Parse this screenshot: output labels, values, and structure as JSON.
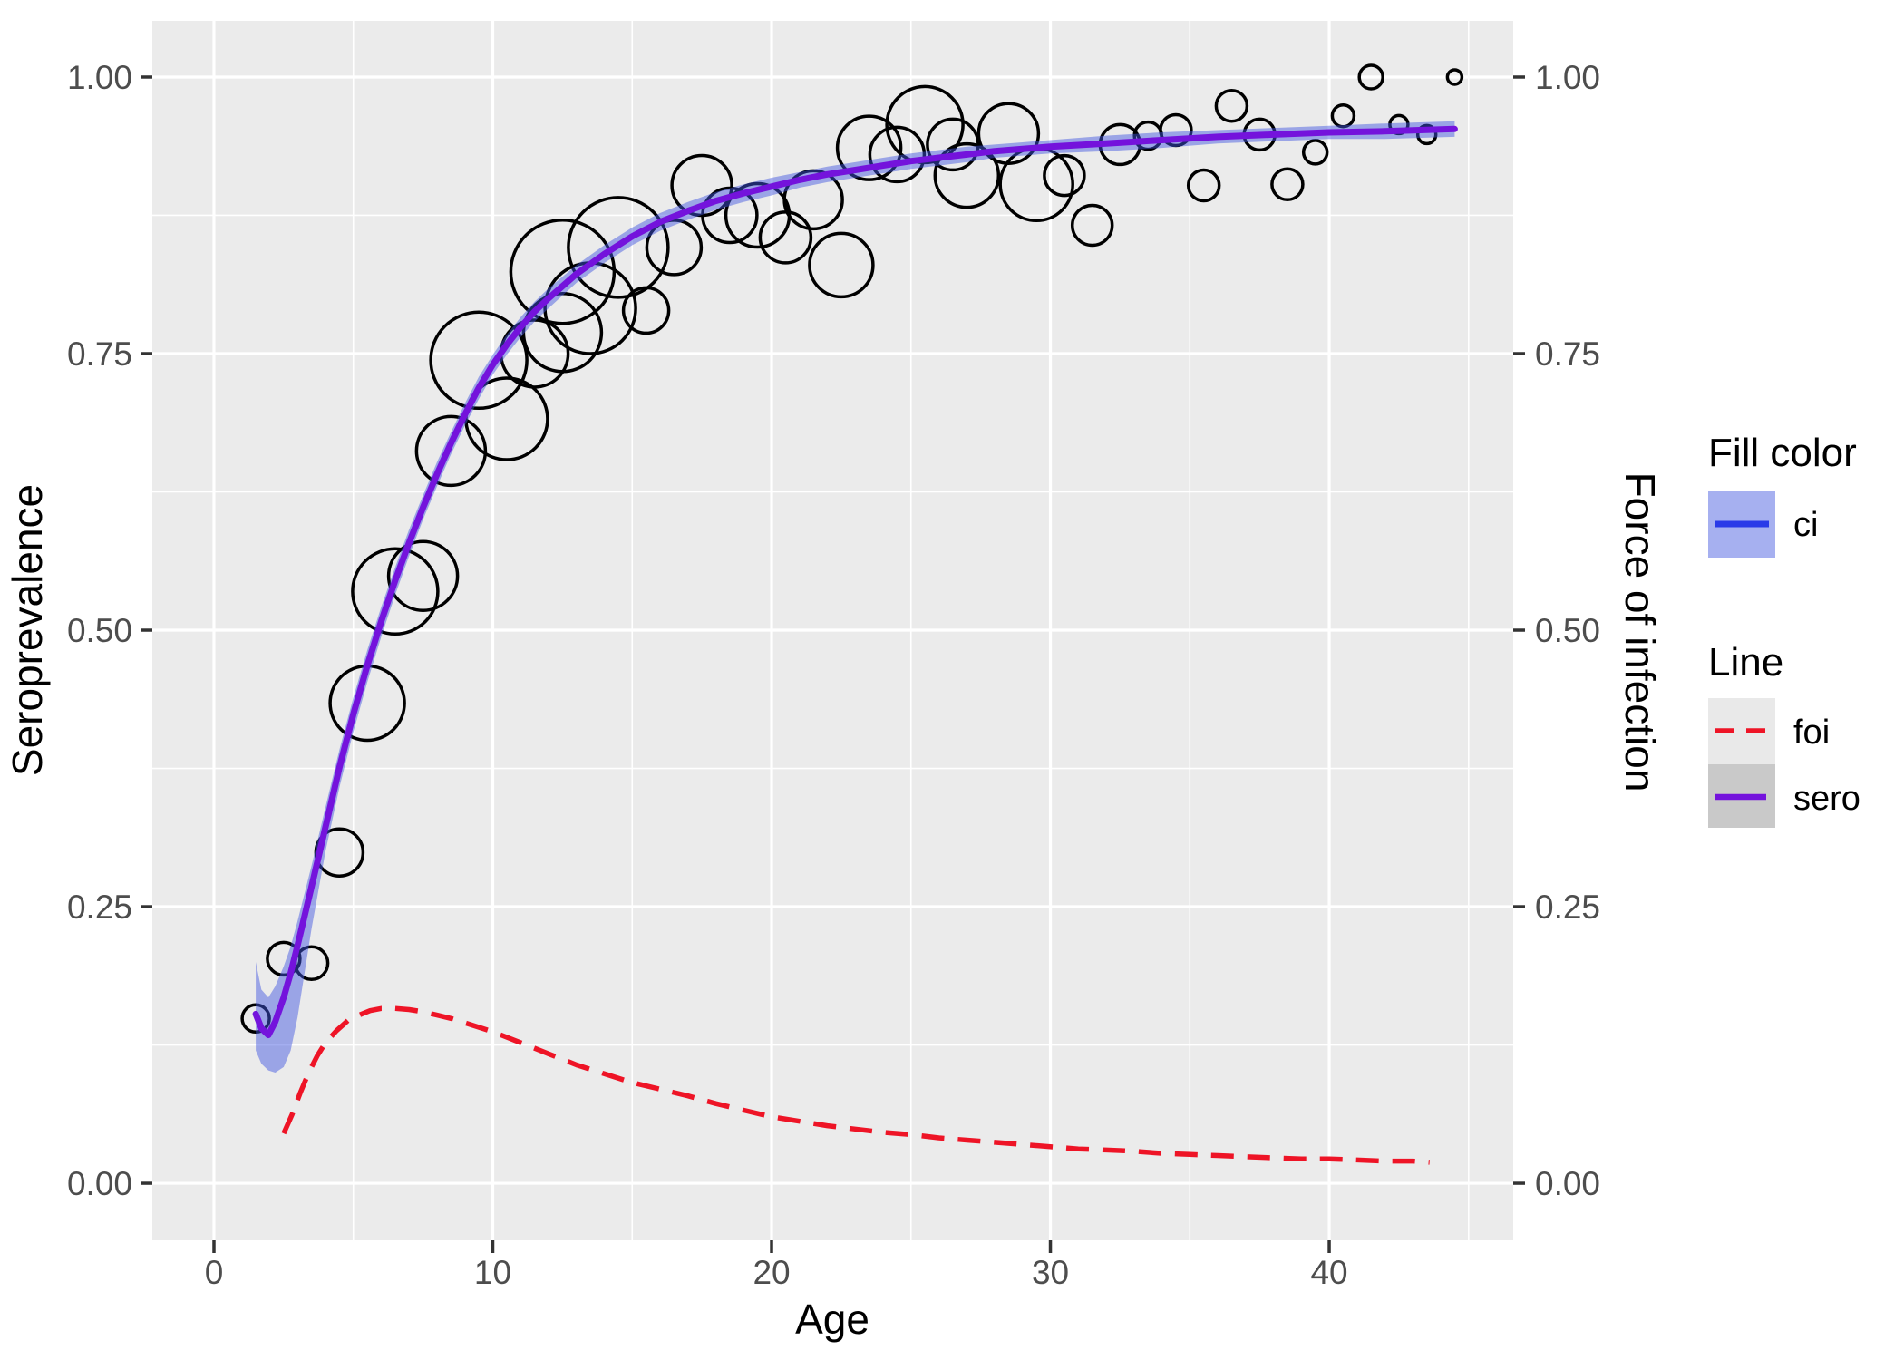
{
  "figure": {
    "xlabel": "Age",
    "ylabel_left": "Seroprevalence",
    "ylabel_right": "Force of infection"
  },
  "legend": {
    "fill_title": "Fill color",
    "fill_items": [
      {
        "label": "ci"
      }
    ],
    "line_title": "Line",
    "line_items": [
      {
        "label": "foi"
      },
      {
        "label": "sero"
      }
    ]
  },
  "colors": {
    "panel": "#EBEBEB",
    "grid": "#FFFFFF",
    "tick_text": "#4D4D4D",
    "tick_mark": "#333333",
    "bubble_stroke": "#000000",
    "sero_line": "#7413DC",
    "foi_line": "#EE1426",
    "ci_line": "#2A3BE8",
    "ci_ribbon": "#4156E0",
    "ci_key_bg": "#A6B0F0",
    "foi_key_bg": "#E9E9E9",
    "sero_key_bg": "#C9C9C9"
  },
  "chart_data": {
    "type": "scatter",
    "title": "",
    "xlabel": "Age",
    "ylabel": "Seroprevalence",
    "ylabel_secondary": "Force of infection",
    "x_range": [
      -2.211,
      46.6
    ],
    "y_range": [
      -0.0516,
      1.0508
    ],
    "x_major": [
      0,
      10,
      20,
      30,
      40
    ],
    "x_minor": [
      5,
      15,
      25,
      35,
      45
    ],
    "y_major": [
      0,
      0.25,
      0.5,
      0.75,
      1
    ],
    "y_major_labels": [
      "0.00",
      "0.25",
      "0.50",
      "0.75",
      "1.00"
    ],
    "y_minor": [
      0.125,
      0.375,
      0.625,
      0.875
    ],
    "grid": true,
    "legend_position": "right",
    "bubbles": [
      {
        "age": 1.5,
        "sero": 0.149,
        "r": 15
      },
      {
        "age": 2.5,
        "sero": 0.203,
        "r": 18
      },
      {
        "age": 3.5,
        "sero": 0.199,
        "r": 18
      },
      {
        "age": 4.5,
        "sero": 0.299,
        "r": 26
      },
      {
        "age": 5.5,
        "sero": 0.434,
        "r": 41
      },
      {
        "age": 6.5,
        "sero": 0.535,
        "r": 47
      },
      {
        "age": 7.5,
        "sero": 0.549,
        "r": 38
      },
      {
        "age": 8.5,
        "sero": 0.662,
        "r": 38
      },
      {
        "age": 9.5,
        "sero": 0.744,
        "r": 53
      },
      {
        "age": 10.5,
        "sero": 0.691,
        "r": 45
      },
      {
        "age": 11.5,
        "sero": 0.75,
        "r": 37
      },
      {
        "age": 12.5,
        "sero": 0.769,
        "r": 43
      },
      {
        "age": 12.5,
        "sero": 0.824,
        "r": 57
      },
      {
        "age": 13.5,
        "sero": 0.791,
        "r": 50
      },
      {
        "age": 14.5,
        "sero": 0.846,
        "r": 55
      },
      {
        "age": 15.5,
        "sero": 0.789,
        "r": 25
      },
      {
        "age": 16.5,
        "sero": 0.846,
        "r": 30
      },
      {
        "age": 17.5,
        "sero": 0.902,
        "r": 33
      },
      {
        "age": 18.5,
        "sero": 0.875,
        "r": 30
      },
      {
        "age": 19.5,
        "sero": 0.875,
        "r": 35
      },
      {
        "age": 20.5,
        "sero": 0.855,
        "r": 28
      },
      {
        "age": 21.5,
        "sero": 0.889,
        "r": 32
      },
      {
        "age": 22.5,
        "sero": 0.83,
        "r": 35
      },
      {
        "age": 23.5,
        "sero": 0.936,
        "r": 35
      },
      {
        "age": 24.5,
        "sero": 0.93,
        "r": 30
      },
      {
        "age": 25.5,
        "sero": 0.957,
        "r": 42
      },
      {
        "age": 26.5,
        "sero": 0.939,
        "r": 28
      },
      {
        "age": 27.0,
        "sero": 0.911,
        "r": 35
      },
      {
        "age": 28.5,
        "sero": 0.949,
        "r": 33
      },
      {
        "age": 29.5,
        "sero": 0.903,
        "r": 40
      },
      {
        "age": 30.5,
        "sero": 0.911,
        "r": 22
      },
      {
        "age": 31.5,
        "sero": 0.866,
        "r": 22
      },
      {
        "age": 32.5,
        "sero": 0.939,
        "r": 22
      },
      {
        "age": 33.5,
        "sero": 0.947,
        "r": 15
      },
      {
        "age": 34.5,
        "sero": 0.952,
        "r": 17
      },
      {
        "age": 35.5,
        "sero": 0.902,
        "r": 17
      },
      {
        "age": 36.5,
        "sero": 0.974,
        "r": 17
      },
      {
        "age": 37.5,
        "sero": 0.948,
        "r": 17
      },
      {
        "age": 38.5,
        "sero": 0.903,
        "r": 17
      },
      {
        "age": 39.5,
        "sero": 0.932,
        "r": 13
      },
      {
        "age": 40.5,
        "sero": 0.965,
        "r": 12
      },
      {
        "age": 41.5,
        "sero": 1.0,
        "r": 13
      },
      {
        "age": 42.5,
        "sero": 0.957,
        "r": 10
      },
      {
        "age": 43.5,
        "sero": 0.948,
        "r": 10
      },
      {
        "age": 44.5,
        "sero": 1.0,
        "r": 8
      }
    ],
    "sero_line": [
      [
        1.5,
        0.153
      ],
      [
        1.7,
        0.14
      ],
      [
        1.95,
        0.134
      ],
      [
        2.2,
        0.146
      ],
      [
        2.5,
        0.168
      ],
      [
        2.75,
        0.19
      ],
      [
        3,
        0.215
      ],
      [
        3.5,
        0.268
      ],
      [
        4,
        0.322
      ],
      [
        4.5,
        0.376
      ],
      [
        5,
        0.424
      ],
      [
        5.5,
        0.468
      ],
      [
        6,
        0.508
      ],
      [
        6.5,
        0.545
      ],
      [
        7,
        0.579
      ],
      [
        7.5,
        0.611
      ],
      [
        8,
        0.641
      ],
      [
        8.5,
        0.669
      ],
      [
        9,
        0.695
      ],
      [
        9.5,
        0.719
      ],
      [
        10,
        0.74
      ],
      [
        10.5,
        0.758
      ],
      [
        11,
        0.774
      ],
      [
        11.5,
        0.788
      ],
      [
        12,
        0.8
      ],
      [
        13,
        0.822
      ],
      [
        14,
        0.84
      ],
      [
        15,
        0.856
      ],
      [
        16,
        0.869
      ],
      [
        17,
        0.879
      ],
      [
        18,
        0.888
      ],
      [
        19,
        0.895
      ],
      [
        20,
        0.901
      ],
      [
        21,
        0.907
      ],
      [
        22,
        0.912
      ],
      [
        23,
        0.916
      ],
      [
        24,
        0.92
      ],
      [
        25,
        0.924
      ],
      [
        26,
        0.927
      ],
      [
        27,
        0.93
      ],
      [
        28,
        0.933
      ],
      [
        29,
        0.935
      ],
      [
        30,
        0.937
      ],
      [
        32,
        0.94
      ],
      [
        34,
        0.943
      ],
      [
        36,
        0.946
      ],
      [
        38,
        0.948
      ],
      [
        40,
        0.95
      ],
      [
        42,
        0.951
      ],
      [
        44.5,
        0.953
      ]
    ],
    "ci_hi": [
      [
        1.5,
        0.2
      ],
      [
        1.7,
        0.175
      ],
      [
        1.95,
        0.168
      ],
      [
        2.2,
        0.178
      ],
      [
        2.5,
        0.196
      ],
      [
        2.75,
        0.214
      ],
      [
        3,
        0.237
      ],
      [
        3.5,
        0.287
      ],
      [
        4,
        0.34
      ],
      [
        4.5,
        0.392
      ],
      [
        5,
        0.439
      ],
      [
        5.5,
        0.482
      ],
      [
        6,
        0.521
      ],
      [
        6.5,
        0.557
      ],
      [
        7,
        0.591
      ],
      [
        7.5,
        0.622
      ],
      [
        8,
        0.652
      ],
      [
        8.5,
        0.679
      ],
      [
        9,
        0.705
      ],
      [
        9.5,
        0.729
      ],
      [
        10,
        0.749
      ],
      [
        10.5,
        0.767
      ],
      [
        11,
        0.783
      ],
      [
        11.5,
        0.797
      ],
      [
        12,
        0.809
      ],
      [
        13,
        0.83
      ],
      [
        14,
        0.848
      ],
      [
        15,
        0.864
      ],
      [
        16,
        0.877
      ],
      [
        17,
        0.887
      ],
      [
        18,
        0.896
      ],
      [
        19,
        0.903
      ],
      [
        20,
        0.909
      ],
      [
        21,
        0.914
      ],
      [
        22,
        0.919
      ],
      [
        23,
        0.923
      ],
      [
        24,
        0.927
      ],
      [
        25,
        0.931
      ],
      [
        26,
        0.934
      ],
      [
        27,
        0.937
      ],
      [
        28,
        0.939
      ],
      [
        29,
        0.941
      ],
      [
        30,
        0.943
      ],
      [
        32,
        0.947
      ],
      [
        34,
        0.95
      ],
      [
        36,
        0.952
      ],
      [
        38,
        0.954
      ],
      [
        40,
        0.956
      ],
      [
        42,
        0.958
      ],
      [
        44.5,
        0.96
      ]
    ],
    "ci_lo": [
      [
        1.5,
        0.12
      ],
      [
        1.7,
        0.108
      ],
      [
        1.95,
        0.102
      ],
      [
        2.2,
        0.1
      ],
      [
        2.5,
        0.105
      ],
      [
        2.75,
        0.12
      ],
      [
        3,
        0.15
      ],
      [
        3.5,
        0.23
      ],
      [
        4,
        0.3
      ],
      [
        4.5,
        0.358
      ],
      [
        5,
        0.408
      ],
      [
        5.5,
        0.453
      ],
      [
        6,
        0.494
      ],
      [
        6.5,
        0.532
      ],
      [
        7,
        0.567
      ],
      [
        7.5,
        0.6
      ],
      [
        8,
        0.63
      ],
      [
        8.5,
        0.659
      ],
      [
        9,
        0.685
      ],
      [
        9.5,
        0.709
      ],
      [
        10,
        0.731
      ],
      [
        10.5,
        0.749
      ],
      [
        11,
        0.765
      ],
      [
        11.5,
        0.779
      ],
      [
        12,
        0.791
      ],
      [
        13,
        0.814
      ],
      [
        14,
        0.832
      ],
      [
        15,
        0.848
      ],
      [
        16,
        0.861
      ],
      [
        17,
        0.871
      ],
      [
        18,
        0.88
      ],
      [
        19,
        0.887
      ],
      [
        20,
        0.893
      ],
      [
        21,
        0.9
      ],
      [
        22,
        0.905
      ],
      [
        23,
        0.909
      ],
      [
        24,
        0.913
      ],
      [
        25,
        0.917
      ],
      [
        26,
        0.92
      ],
      [
        27,
        0.923
      ],
      [
        28,
        0.927
      ],
      [
        29,
        0.929
      ],
      [
        30,
        0.931
      ],
      [
        32,
        0.933
      ],
      [
        34,
        0.936
      ],
      [
        36,
        0.94
      ],
      [
        38,
        0.942
      ],
      [
        40,
        0.944
      ],
      [
        42,
        0.944
      ],
      [
        44.5,
        0.946
      ]
    ],
    "foi_line": [
      [
        2.5,
        0.045
      ],
      [
        2.8,
        0.062
      ],
      [
        3.1,
        0.082
      ],
      [
        3.4,
        0.1
      ],
      [
        3.7,
        0.115
      ],
      [
        4,
        0.127
      ],
      [
        4.4,
        0.138
      ],
      [
        4.8,
        0.147
      ],
      [
        5.2,
        0.152
      ],
      [
        5.6,
        0.156
      ],
      [
        6,
        0.158
      ],
      [
        6.5,
        0.158
      ],
      [
        7,
        0.157
      ],
      [
        7.5,
        0.155
      ],
      [
        8,
        0.152
      ],
      [
        8.5,
        0.149
      ],
      [
        9,
        0.145
      ],
      [
        9.5,
        0.141
      ],
      [
        10,
        0.137
      ],
      [
        11,
        0.127
      ],
      [
        12,
        0.117
      ],
      [
        13,
        0.107
      ],
      [
        14,
        0.099
      ],
      [
        15,
        0.091
      ],
      [
        16,
        0.085
      ],
      [
        17,
        0.079
      ],
      [
        18,
        0.072
      ],
      [
        19,
        0.066
      ],
      [
        20,
        0.06
      ],
      [
        21,
        0.056
      ],
      [
        22,
        0.052
      ],
      [
        23,
        0.049
      ],
      [
        24,
        0.046
      ],
      [
        25,
        0.044
      ],
      [
        26,
        0.041
      ],
      [
        27,
        0.039
      ],
      [
        28,
        0.037
      ],
      [
        29,
        0.035
      ],
      [
        30,
        0.033
      ],
      [
        31,
        0.031
      ],
      [
        32,
        0.03
      ],
      [
        33,
        0.029
      ],
      [
        34,
        0.027
      ],
      [
        35,
        0.026
      ],
      [
        36,
        0.025
      ],
      [
        37,
        0.024
      ],
      [
        38,
        0.023
      ],
      [
        39,
        0.022
      ],
      [
        40,
        0.022
      ],
      [
        41,
        0.021
      ],
      [
        42,
        0.02
      ],
      [
        43,
        0.02
      ],
      [
        43.6,
        0.019
      ]
    ]
  }
}
